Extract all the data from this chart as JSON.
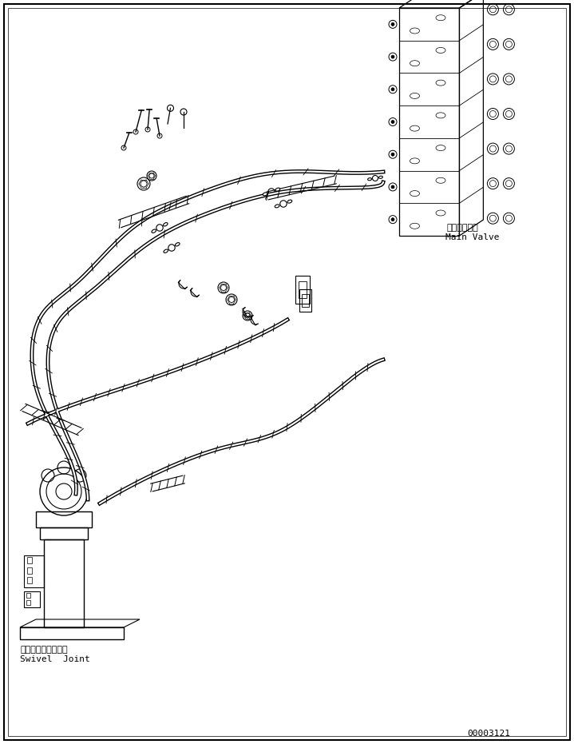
{
  "title": "",
  "bg_color": "#ffffff",
  "line_color": "#000000",
  "fig_width": 7.19,
  "fig_height": 9.31,
  "dpi": 100,
  "labels": {
    "main_valve_jp": "メインバルブ",
    "main_valve_en": "Main Valve",
    "swivel_jp": "スイベルジョイント",
    "swivel_en": "Swivel  Joint",
    "part_number": "00003121"
  }
}
